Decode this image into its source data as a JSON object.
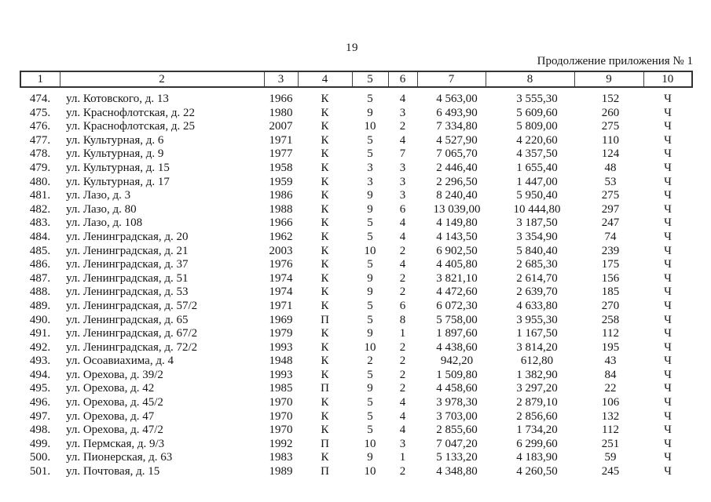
{
  "page": {
    "number": "19",
    "continuation_note": "Продолжение приложения № 1"
  },
  "table": {
    "column_headers": [
      "1",
      "2",
      "3",
      "4",
      "5",
      "6",
      "7",
      "8",
      "9",
      "10"
    ],
    "rows": [
      [
        "474.",
        "ул. Котовского, д. 13",
        "1966",
        "К",
        "5",
        "4",
        "4 563,00",
        "3 555,30",
        "152",
        "Ч"
      ],
      [
        "475.",
        "ул. Краснофлотская, д. 22",
        "1980",
        "К",
        "9",
        "3",
        "6 493,90",
        "5 609,60",
        "260",
        "Ч"
      ],
      [
        "476.",
        "ул. Краснофлотская, д. 25",
        "2007",
        "К",
        "10",
        "2",
        "7 334,80",
        "5 809,00",
        "275",
        "Ч"
      ],
      [
        "477.",
        "ул. Культурная, д. 6",
        "1971",
        "К",
        "5",
        "4",
        "4 527,90",
        "4 220,60",
        "110",
        "Ч"
      ],
      [
        "478.",
        "ул. Культурная, д. 9",
        "1977",
        "К",
        "5",
        "7",
        "7 065,70",
        "4 357,50",
        "124",
        "Ч"
      ],
      [
        "479.",
        "ул. Культурная, д. 15",
        "1958",
        "К",
        "3",
        "3",
        "2 446,40",
        "1 655,40",
        "48",
        "Ч"
      ],
      [
        "480.",
        "ул. Культурная, д. 17",
        "1959",
        "К",
        "3",
        "3",
        "2 296,50",
        "1 447,00",
        "53",
        "Ч"
      ],
      [
        "481.",
        "ул. Лазо, д. 3",
        "1986",
        "К",
        "9",
        "3",
        "8 240,40",
        "5 950,40",
        "275",
        "Ч"
      ],
      [
        "482.",
        "ул. Лазо, д. 80",
        "1988",
        "К",
        "9",
        "6",
        "13 039,00",
        "10 444,80",
        "297",
        "Ч"
      ],
      [
        "483.",
        "ул. Лазо, д. 108",
        "1966",
        "К",
        "5",
        "4",
        "4 149,80",
        "3 187,50",
        "247",
        "Ч"
      ],
      [
        "484.",
        "ул. Ленинградская, д. 20",
        "1962",
        "К",
        "5",
        "4",
        "4 143,50",
        "3 354,90",
        "74",
        "Ч"
      ],
      [
        "485.",
        "ул. Ленинградская, д. 21",
        "2003",
        "К",
        "10",
        "2",
        "6 902,50",
        "5 840,40",
        "239",
        "Ч"
      ],
      [
        "486.",
        "ул. Ленинградская, д. 37",
        "1976",
        "К",
        "5",
        "4",
        "4 405,80",
        "2 685,30",
        "175",
        "Ч"
      ],
      [
        "487.",
        "ул. Ленинградская, д. 51",
        "1974",
        "К",
        "9",
        "2",
        "3 821,10",
        "2 614,70",
        "156",
        "Ч"
      ],
      [
        "488.",
        "ул. Ленинградская, д. 53",
        "1974",
        "К",
        "9",
        "2",
        "4 472,60",
        "2 639,70",
        "185",
        "Ч"
      ],
      [
        "489.",
        "ул. Ленинградская, д. 57/2",
        "1971",
        "К",
        "5",
        "6",
        "6 072,30",
        "4 633,80",
        "270",
        "Ч"
      ],
      [
        "490.",
        "ул. Ленинградская, д. 65",
        "1969",
        "П",
        "5",
        "8",
        "5 758,00",
        "3 955,30",
        "258",
        "Ч"
      ],
      [
        "491.",
        "ул. Ленинградская, д. 67/2",
        "1979",
        "К",
        "9",
        "1",
        "1 897,60",
        "1 167,50",
        "112",
        "Ч"
      ],
      [
        "492.",
        "ул. Ленинградская, д. 72/2",
        "1993",
        "К",
        "10",
        "2",
        "4 438,60",
        "3 814,20",
        "195",
        "Ч"
      ],
      [
        "493.",
        "ул. Осоавиахима, д. 4",
        "1948",
        "К",
        "2",
        "2",
        "942,20",
        "612,80",
        "43",
        "Ч"
      ],
      [
        "494.",
        "ул. Орехова, д. 39/2",
        "1993",
        "К",
        "5",
        "2",
        "1 509,80",
        "1 382,90",
        "84",
        "Ч"
      ],
      [
        "495.",
        "ул. Орехова, д. 42",
        "1985",
        "П",
        "9",
        "2",
        "4 458,60",
        "3 297,20",
        "22",
        "Ч"
      ],
      [
        "496.",
        "ул. Орехова, д. 45/2",
        "1970",
        "К",
        "5",
        "4",
        "3 978,30",
        "2 879,10",
        "106",
        "Ч"
      ],
      [
        "497.",
        "ул. Орехова, д. 47",
        "1970",
        "К",
        "5",
        "4",
        "3 703,00",
        "2 856,60",
        "132",
        "Ч"
      ],
      [
        "498.",
        "ул. Орехова, д. 47/2",
        "1970",
        "К",
        "5",
        "4",
        "2 855,60",
        "1 734,20",
        "112",
        "Ч"
      ],
      [
        "499.",
        "ул. Пермская, д. 9/3",
        "1992",
        "П",
        "10",
        "3",
        "7 047,20",
        "6 299,60",
        "251",
        "Ч"
      ],
      [
        "500.",
        "ул. Пионерская, д. 63",
        "1983",
        "К",
        "9",
        "1",
        "5 133,20",
        "4 183,90",
        "59",
        "Ч"
      ],
      [
        "501.",
        "ул. Почтовая, д. 15",
        "1989",
        "П",
        "10",
        "2",
        "4 348,80",
        "4 260,50",
        "245",
        "Ч"
      ]
    ]
  }
}
